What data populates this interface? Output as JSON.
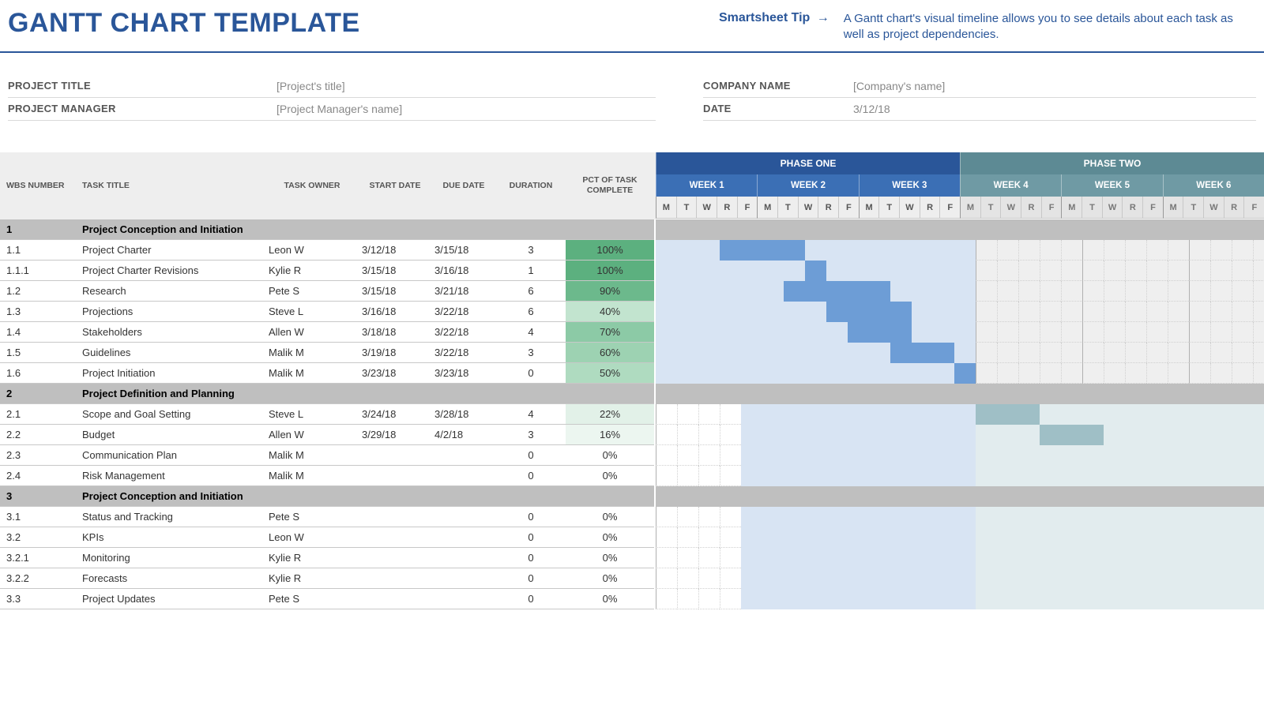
{
  "header": {
    "title": "GANTT CHART TEMPLATE",
    "tip_label": "Smartsheet Tip",
    "tip_arrow": "→",
    "tip_text": "A Gantt chart's visual timeline allows you to see details about each task as well as project dependencies."
  },
  "meta": {
    "left": [
      {
        "label": "PROJECT TITLE",
        "value": "[Project's title]"
      },
      {
        "label": "PROJECT MANAGER",
        "value": "[Project Manager's name]"
      }
    ],
    "right": [
      {
        "label": "COMPANY NAME",
        "value": "[Company's name]"
      },
      {
        "label": "DATE",
        "value": "3/12/18"
      }
    ]
  },
  "columns": {
    "wbs": "WBS NUMBER",
    "title": "TASK TITLE",
    "owner": "TASK OWNER",
    "start": "START DATE",
    "due": "DUE DATE",
    "duration": "DURATION",
    "pct": "PCT OF TASK COMPLETE"
  },
  "timeline": {
    "day_width": 27,
    "days_per_week": 5,
    "day_letters": [
      "M",
      "T",
      "W",
      "R",
      "F"
    ],
    "phases": [
      {
        "label": "PHASE ONE",
        "weeks": 3,
        "bg": "#2a5699",
        "week_bg": "#3b6fb5",
        "bar_color": "#6d9dd6",
        "bar_light": "#d8e4f3",
        "day_bg": "#eeeeee",
        "day_color": "#555"
      },
      {
        "label": "PHASE TWO",
        "weeks": 3,
        "bg": "#5d8a94",
        "week_bg": "#6f9aa4",
        "bar_color": "#9fbfc6",
        "bar_light": "#e2ecee",
        "day_bg": "#e4e4e4",
        "day_color": "#777"
      }
    ],
    "week_label_prefix": "WEEK "
  },
  "pct_colors": {
    "100": "#5cb07f",
    "90": "#6cb98c",
    "70": "#8ccaa6",
    "60": "#9dd2b2",
    "50": "#afdbc0",
    "40": "#c2e4cf",
    "22": "#e2f1e8",
    "16": "#ecf6f0",
    "0": "#ffffff"
  },
  "rows": [
    {
      "type": "section",
      "wbs": "1",
      "title": "Project Conception and Initiation"
    },
    {
      "wbs": "1.1",
      "title": "Project Charter",
      "owner": "Leon W",
      "start": "3/12/18",
      "due": "3/15/18",
      "dur": "3",
      "pct": "100%",
      "pct_key": "100",
      "bar_start": 3,
      "bar_len": 4,
      "light_start": 0,
      "light_len": 15
    },
    {
      "wbs": "1.1.1",
      "title": "Project Charter Revisions",
      "owner": "Kylie R",
      "start": "3/15/18",
      "due": "3/16/18",
      "dur": "1",
      "pct": "100%",
      "pct_key": "100",
      "bar_start": 7,
      "bar_len": 1,
      "light_start": 0,
      "light_len": 15
    },
    {
      "wbs": "1.2",
      "title": "Research",
      "owner": "Pete S",
      "start": "3/15/18",
      "due": "3/21/18",
      "dur": "6",
      "pct": "90%",
      "pct_key": "90",
      "bar_start": 6,
      "bar_len": 5,
      "light_start": 0,
      "light_len": 15
    },
    {
      "wbs": "1.3",
      "title": "Projections",
      "owner": "Steve L",
      "start": "3/16/18",
      "due": "3/22/18",
      "dur": "6",
      "pct": "40%",
      "pct_key": "40",
      "bar_start": 8,
      "bar_len": 4,
      "light_start": 0,
      "light_len": 15
    },
    {
      "wbs": "1.4",
      "title": "Stakeholders",
      "owner": "Allen W",
      "start": "3/18/18",
      "due": "3/22/18",
      "dur": "4",
      "pct": "70%",
      "pct_key": "70",
      "bar_start": 9,
      "bar_len": 3,
      "light_start": 0,
      "light_len": 15
    },
    {
      "wbs": "1.5",
      "title": "Guidelines",
      "owner": "Malik M",
      "start": "3/19/18",
      "due": "3/22/18",
      "dur": "3",
      "pct": "60%",
      "pct_key": "60",
      "bar_start": 11,
      "bar_len": 3,
      "light_start": 0,
      "light_len": 15
    },
    {
      "wbs": "1.6",
      "title": "Project Initiation",
      "owner": "Malik M",
      "start": "3/23/18",
      "due": "3/23/18",
      "dur": "0",
      "pct": "50%",
      "pct_key": "50",
      "bar_start": 14,
      "bar_len": 1,
      "light_start": 0,
      "light_len": 15
    },
    {
      "type": "section",
      "wbs": "2",
      "title": "Project Definition and Planning"
    },
    {
      "wbs": "2.1",
      "title": "Scope and Goal Setting",
      "owner": "Steve L",
      "start": "3/24/18",
      "due": "3/28/18",
      "dur": "4",
      "pct": "22%",
      "pct_key": "22",
      "bar_start": 15,
      "bar_len": 3,
      "phase": 1,
      "light_start": 4,
      "light_len": 26
    },
    {
      "wbs": "2.2",
      "title": "Budget",
      "owner": "Allen W",
      "start": "3/29/18",
      "due": "4/2/18",
      "dur": "3",
      "pct": "16%",
      "pct_key": "16",
      "bar_start": 18,
      "bar_len": 3,
      "phase": 1,
      "light_start": 4,
      "light_len": 26
    },
    {
      "wbs": "2.3",
      "title": "Communication Plan",
      "owner": "Malik M",
      "start": "",
      "due": "",
      "dur": "0",
      "pct": "0%",
      "pct_key": "0",
      "light_start": 4,
      "light_len": 26
    },
    {
      "wbs": "2.4",
      "title": "Risk Management",
      "owner": "Malik M",
      "start": "",
      "due": "",
      "dur": "0",
      "pct": "0%",
      "pct_key": "0",
      "light_start": 4,
      "light_len": 26
    },
    {
      "type": "section",
      "wbs": "3",
      "title": "Project Conception and Initiation"
    },
    {
      "wbs": "3.1",
      "title": "Status and Tracking",
      "owner": "Pete S",
      "start": "",
      "due": "",
      "dur": "0",
      "pct": "0%",
      "pct_key": "0",
      "light_start": 4,
      "light_len": 26
    },
    {
      "wbs": "3.2",
      "title": "KPIs",
      "owner": "Leon W",
      "start": "",
      "due": "",
      "dur": "0",
      "pct": "0%",
      "pct_key": "0",
      "light_start": 4,
      "light_len": 26
    },
    {
      "wbs": "3.2.1",
      "title": "Monitoring",
      "owner": "Kylie R",
      "start": "",
      "due": "",
      "dur": "0",
      "pct": "0%",
      "pct_key": "0",
      "light_start": 4,
      "light_len": 26
    },
    {
      "wbs": "3.2.2",
      "title": "Forecasts",
      "owner": "Kylie R",
      "start": "",
      "due": "",
      "dur": "0",
      "pct": "0%",
      "pct_key": "0",
      "light_start": 4,
      "light_len": 26
    },
    {
      "wbs": "3.3",
      "title": "Project Updates",
      "owner": "Pete S",
      "start": "",
      "due": "",
      "dur": "0",
      "pct": "0%",
      "pct_key": "0",
      "light_start": 4,
      "light_len": 26
    }
  ]
}
